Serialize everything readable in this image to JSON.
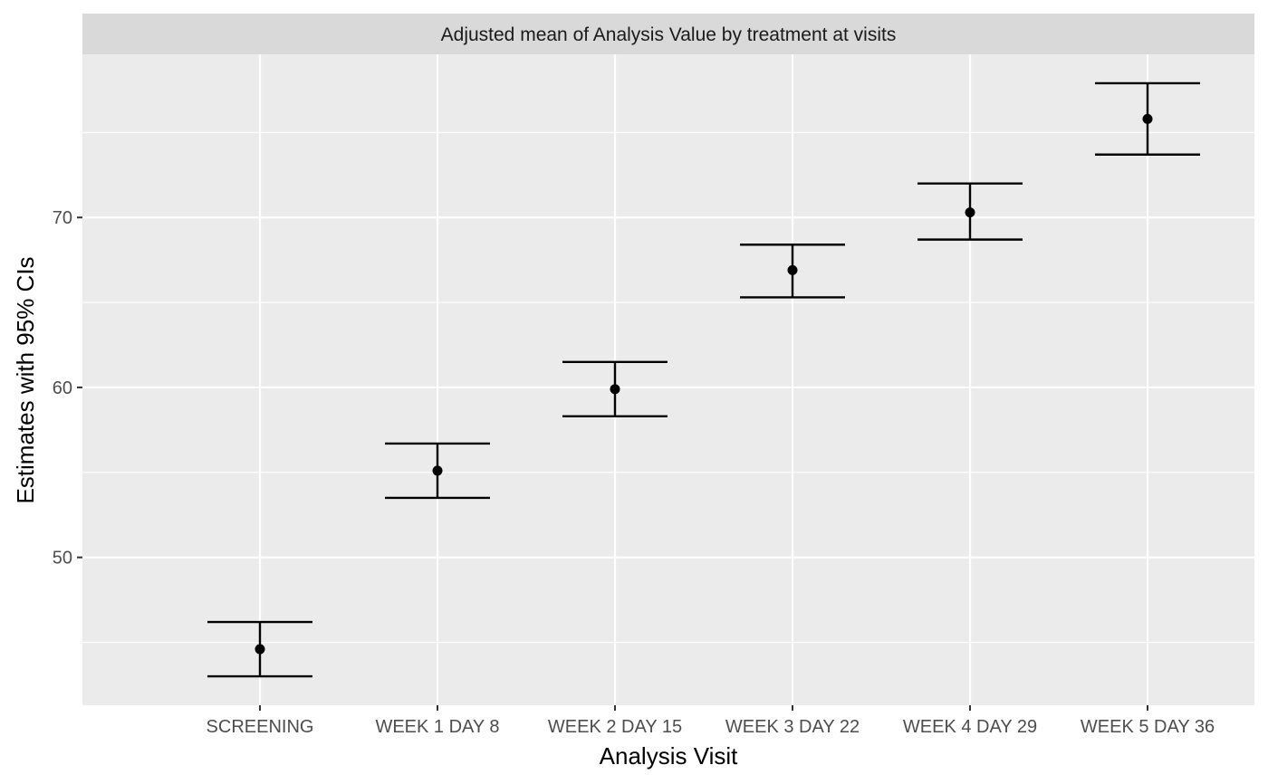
{
  "chart_data": {
    "type": "errorbar",
    "title": "Adjusted mean of Analysis Value by treatment at visits",
    "xlabel": "Analysis Visit",
    "ylabel": "Estimates with 95% CIs",
    "categories": [
      "SCREENING",
      "WEEK 1 DAY 8",
      "WEEK 2 DAY 15",
      "WEEK 3 DAY 22",
      "WEEK 4 DAY 29",
      "WEEK 5 DAY 36"
    ],
    "series": [
      {
        "estimate": [
          44.6,
          55.1,
          59.9,
          66.9,
          70.3,
          75.8
        ],
        "lower": [
          43.0,
          53.5,
          58.3,
          65.3,
          68.7,
          73.7
        ],
        "upper": [
          46.2,
          56.7,
          61.5,
          68.4,
          72.0,
          77.9
        ]
      }
    ],
    "ylim": [
      41.3,
      79.6
    ],
    "yticks": [
      50,
      60,
      70
    ],
    "yminor": [
      45,
      55,
      65,
      75
    ],
    "grid": true,
    "colors": {
      "panel_bg": "#ebebeb",
      "strip_bg": "#d9d9d9",
      "grid": "#ffffff",
      "marks": "#000000"
    }
  }
}
